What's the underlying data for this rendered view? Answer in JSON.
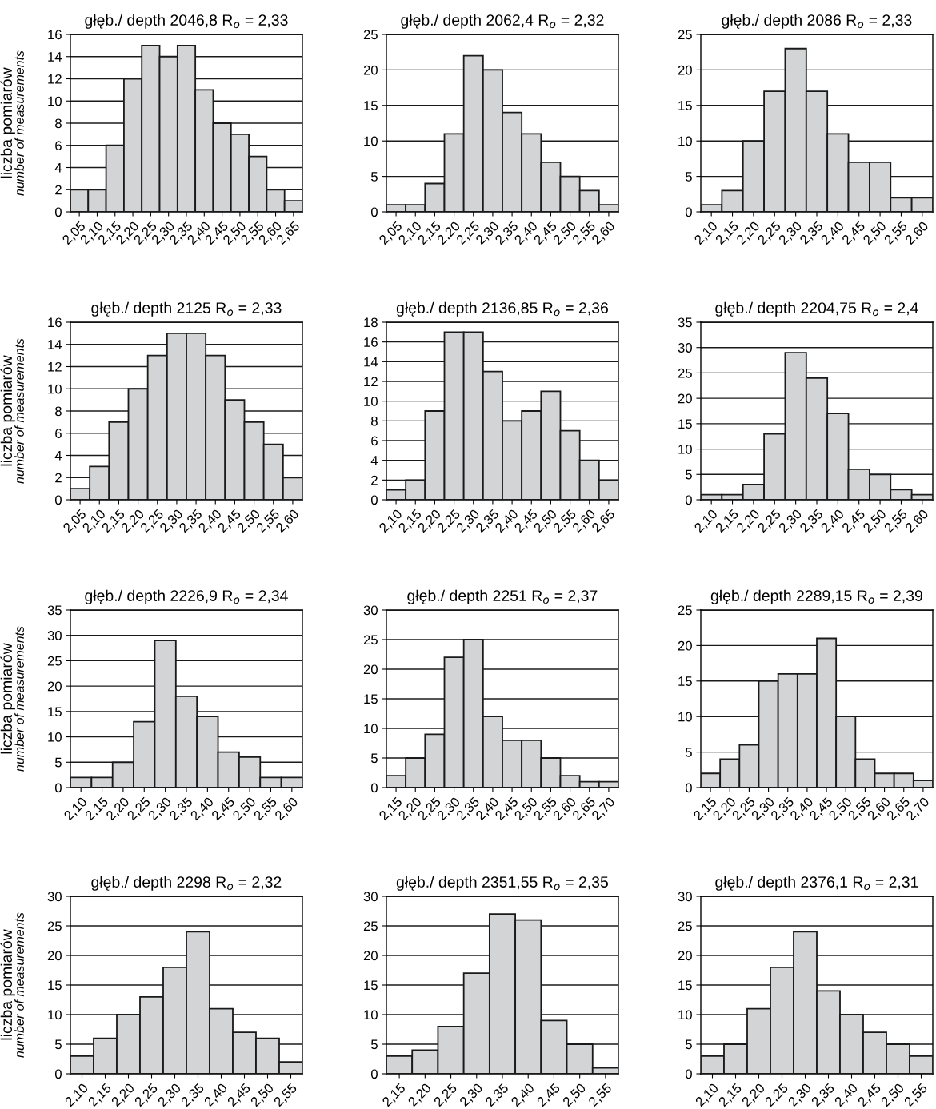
{
  "chart_data": [
    {
      "type": "bar",
      "title": "głęb./ depth 2046,8 R$_{o}$ = 2,33",
      "ylabel": "liczba pomiarów\nnumber of measurements",
      "categories": [
        "2,05",
        "2,10",
        "2,15",
        "2,20",
        "2,25",
        "2,30",
        "2,35",
        "2,40",
        "2,45",
        "2,50",
        "2,55",
        "2,60",
        "2,65"
      ],
      "values": [
        2,
        2,
        6,
        12,
        15,
        14,
        15,
        11,
        8,
        7,
        5,
        2,
        1
      ],
      "color": "#d3d4d6",
      "ylim": [
        0,
        16
      ],
      "yticks": [
        0,
        2,
        4,
        6,
        8,
        10,
        12,
        14,
        16
      ],
      "grid": "y"
    },
    {
      "type": "bar",
      "title": "głęb./ depth 2062,4 R$_{o}$ = 2,32",
      "categories": [
        "2,05",
        "2,10",
        "2,15",
        "2,20",
        "2,25",
        "2,30",
        "2,35",
        "2,40",
        "2,45",
        "2,50",
        "2,55",
        "2,60"
      ],
      "values": [
        1,
        1,
        4,
        11,
        22,
        20,
        14,
        11,
        7,
        5,
        3,
        1
      ],
      "color": "#d3d4d6",
      "ylim": [
        0,
        25
      ],
      "yticks": [
        0,
        5,
        10,
        15,
        20,
        25
      ],
      "grid": "y"
    },
    {
      "type": "bar",
      "title": "głęb./ depth 2086 R$_{o}$ = 2,33",
      "categories": [
        "2,10",
        "2,15",
        "2,20",
        "2,25",
        "2,30",
        "2,35",
        "2,40",
        "2,45",
        "2,50",
        "2,55",
        "2,60"
      ],
      "values": [
        1,
        3,
        10,
        17,
        23,
        17,
        11,
        7,
        7,
        2,
        2
      ],
      "color": "#d3d4d6",
      "ylim": [
        0,
        25
      ],
      "yticks": [
        0,
        5,
        10,
        15,
        20,
        25
      ],
      "grid": "y"
    },
    {
      "type": "bar",
      "title": "głęb./ depth 2125 R$_{o}$ = 2,33",
      "ylabel": "liczba pomiarów\nnumber of measurements",
      "categories": [
        "2,05",
        "2,10",
        "2,15",
        "2,20",
        "2,25",
        "2,30",
        "2,35",
        "2,40",
        "2,45",
        "2,50",
        "2,55",
        "2,60"
      ],
      "values": [
        1,
        3,
        7,
        10,
        13,
        15,
        15,
        13,
        9,
        7,
        5,
        2
      ],
      "color": "#d3d4d6",
      "ylim": [
        0,
        16
      ],
      "yticks": [
        0,
        2,
        4,
        6,
        8,
        10,
        12,
        14,
        16
      ],
      "grid": "y"
    },
    {
      "type": "bar",
      "title": "głęb./ depth 2136,85 R$_{o}$ = 2,36",
      "categories": [
        "2,10",
        "2,15",
        "2,20",
        "2,25",
        "2,30",
        "2,35",
        "2,40",
        "2,45",
        "2,50",
        "2,55",
        "2,60",
        "2,65"
      ],
      "values": [
        1,
        2,
        9,
        17,
        17,
        13,
        8,
        9,
        11,
        7,
        4,
        2
      ],
      "color": "#d3d4d6",
      "ylim": [
        0,
        18
      ],
      "yticks": [
        0,
        2,
        4,
        6,
        8,
        10,
        12,
        14,
        16,
        18
      ],
      "grid": "y"
    },
    {
      "type": "bar",
      "title": "głęb./ depth 2204,75 R$_{o}$ = 2,4",
      "categories": [
        "2,10",
        "2,15",
        "2,20",
        "2,25",
        "2,30",
        "2,35",
        "2,40",
        "2,45",
        "2,50",
        "2,55",
        "2,60"
      ],
      "values": [
        1,
        1,
        3,
        13,
        29,
        24,
        17,
        6,
        5,
        2,
        1
      ],
      "color": "#d3d4d6",
      "ylim": [
        0,
        35
      ],
      "yticks": [
        0,
        5,
        10,
        15,
        20,
        25,
        30,
        35
      ],
      "grid": "y"
    },
    {
      "type": "bar",
      "title": "głęb./ depth 2226,9 R$_{o}$ = 2,34",
      "ylabel": "liczba pomiarów\nnumber of measurements",
      "categories": [
        "2,10",
        "2,15",
        "2,20",
        "2,25",
        "2,30",
        "2,35",
        "2,40",
        "2,45",
        "2,50",
        "2,55",
        "2,60"
      ],
      "values": [
        2,
        2,
        5,
        13,
        29,
        18,
        14,
        7,
        6,
        2,
        2
      ],
      "color": "#d3d4d6",
      "ylim": [
        0,
        35
      ],
      "yticks": [
        0,
        5,
        10,
        15,
        20,
        25,
        30,
        35
      ],
      "grid": "y"
    },
    {
      "type": "bar",
      "title": "głęb./ depth 2251 R$_{o}$ = 2,37",
      "categories": [
        "2,15",
        "2,20",
        "2,25",
        "2,30",
        "2,35",
        "2,40",
        "2,45",
        "2,50",
        "2,55",
        "2,60",
        "2,65",
        "2,70"
      ],
      "values": [
        2,
        5,
        9,
        22,
        25,
        12,
        8,
        8,
        5,
        2,
        1,
        1
      ],
      "color": "#d3d4d6",
      "ylim": [
        0,
        30
      ],
      "yticks": [
        0,
        5,
        10,
        15,
        20,
        25,
        30
      ],
      "grid": "y"
    },
    {
      "type": "bar",
      "title": "głęb./ depth 2289,15 R$_{o}$ = 2,39",
      "categories": [
        "2,15",
        "2,20",
        "2,25",
        "2,30",
        "2,35",
        "2,40",
        "2,45",
        "2,50",
        "2,55",
        "2,60",
        "2,65",
        "2,70"
      ],
      "values": [
        2,
        4,
        6,
        15,
        16,
        16,
        21,
        10,
        4,
        2,
        2,
        1
      ],
      "color": "#d3d4d6",
      "ylim": [
        0,
        25
      ],
      "yticks": [
        0,
        5,
        10,
        15,
        20,
        25
      ],
      "grid": "y"
    },
    {
      "type": "bar",
      "title": "głęb./ depth 2298 R$_{o}$ = 2,32",
      "ylabel": "liczba pomiarów\nnumber of measurements",
      "categories": [
        "2,10",
        "2,15",
        "2,20",
        "2,25",
        "2,30",
        "2,35",
        "2,40",
        "2,45",
        "2,50",
        "2,55"
      ],
      "values": [
        3,
        6,
        10,
        13,
        18,
        24,
        11,
        7,
        6,
        2
      ],
      "color": "#d3d4d6",
      "ylim": [
        0,
        30
      ],
      "yticks": [
        0,
        5,
        10,
        15,
        20,
        25,
        30
      ],
      "grid": "y"
    },
    {
      "type": "bar",
      "title": "głęb./ depth 2351,55 R$_{o}$ = 2,35",
      "categories": [
        "2,15",
        "2,20",
        "2,25",
        "2,30",
        "2,35",
        "2,40",
        "2,45",
        "2,50",
        "2,55"
      ],
      "values": [
        3,
        4,
        8,
        17,
        27,
        26,
        9,
        5,
        1
      ],
      "color": "#d3d4d6",
      "ylim": [
        0,
        30
      ],
      "yticks": [
        0,
        5,
        10,
        15,
        20,
        25,
        30
      ],
      "grid": "y"
    },
    {
      "type": "bar",
      "title": "głęb./ depth 2376,1 R$_{o}$ = 2,31",
      "categories": [
        "2,10",
        "2,15",
        "2,20",
        "2,25",
        "2,30",
        "2,35",
        "2,40",
        "2,45",
        "2,50",
        "2,55"
      ],
      "values": [
        3,
        5,
        11,
        18,
        24,
        14,
        10,
        7,
        5,
        3
      ],
      "color": "#d3d4d6",
      "ylim": [
        0,
        30
      ],
      "yticks": [
        0,
        5,
        10,
        15,
        20,
        25,
        30
      ],
      "grid": "y"
    }
  ]
}
